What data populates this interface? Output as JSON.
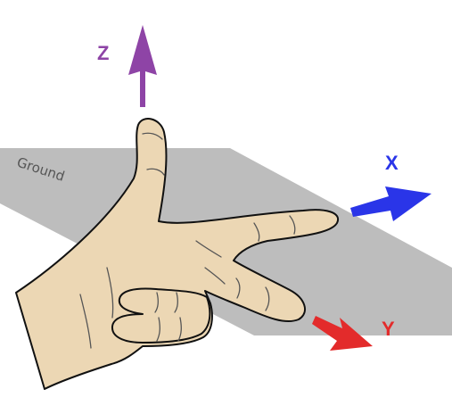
{
  "ground": {
    "label": "Ground",
    "color": "#bdbdbd"
  },
  "axes": {
    "z": {
      "label": "Z",
      "color": "#8e44a6"
    },
    "x": {
      "label": "X",
      "color": "#2a35e8"
    },
    "y": {
      "label": "Y",
      "color": "#e32b2b"
    }
  },
  "hand": {
    "skin_color": "#ecd7b4",
    "outline_color": "#111111"
  }
}
